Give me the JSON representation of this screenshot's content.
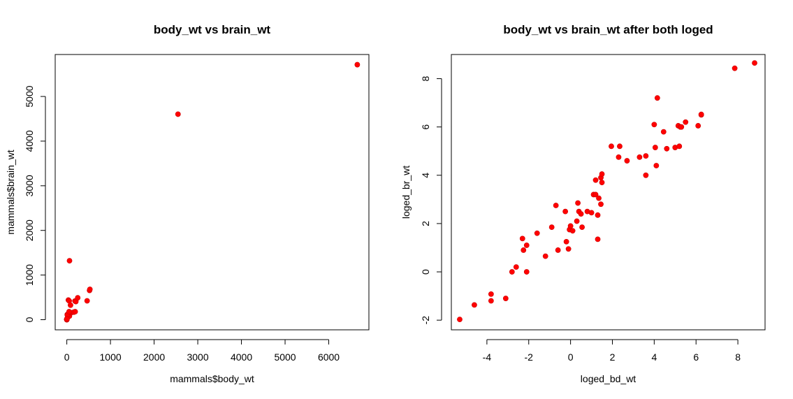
{
  "chart_data": [
    {
      "type": "scatter",
      "title": "body_wt vs brain_wt",
      "xlabel": "mammals$body_wt",
      "ylabel": "mammals$brain_wt",
      "xlim": [
        -266,
        6920
      ],
      "ylim": [
        -227,
        5940
      ],
      "x_ticks": [
        0,
        1000,
        2000,
        3000,
        4000,
        5000,
        6000
      ],
      "y_ticks": [
        0,
        1000,
        2000,
        3000,
        4000,
        5000
      ],
      "point_color": "#ff0000",
      "grid": false,
      "points": [
        {
          "x": 6654,
          "y": 5712
        },
        {
          "x": 2547,
          "y": 4603
        },
        {
          "x": 62,
          "y": 1320
        },
        {
          "x": 521,
          "y": 655
        },
        {
          "x": 529,
          "y": 680
        },
        {
          "x": 465,
          "y": 423
        },
        {
          "x": 187,
          "y": 419
        },
        {
          "x": 207,
          "y": 406
        },
        {
          "x": 250,
          "y": 490
        },
        {
          "x": 36,
          "y": 440
        },
        {
          "x": 55,
          "y": 420
        },
        {
          "x": 100,
          "y": 157
        },
        {
          "x": 60,
          "y": 81
        },
        {
          "x": 85,
          "y": 325
        },
        {
          "x": 10,
          "y": 115
        },
        {
          "x": 27,
          "y": 115
        },
        {
          "x": 14,
          "y": 98
        },
        {
          "x": 52,
          "y": 180
        },
        {
          "x": 160,
          "y": 169
        },
        {
          "x": 192,
          "y": 180
        },
        {
          "x": 3.5,
          "y": 10.8
        },
        {
          "x": 0.48,
          "y": 15.5
        },
        {
          "x": 1.35,
          "y": 8.1
        },
        {
          "x": 0.02,
          "y": 0.4
        },
        {
          "x": 0.12,
          "y": 3
        },
        {
          "x": 0.023,
          "y": 0.3
        },
        {
          "x": 0.785,
          "y": 3.5
        },
        {
          "x": 0.2,
          "y": 5
        },
        {
          "x": 1.41,
          "y": 17.5
        },
        {
          "x": 4.05,
          "y": 17
        }
      ]
    },
    {
      "type": "scatter",
      "title": "body_wt vs brain_wt after both loged",
      "xlabel": "loged_bd_wt",
      "ylabel": "loged_br_wt",
      "xlim": [
        -5.7,
        9.3
      ],
      "ylim": [
        -2.4,
        9.0
      ],
      "x_ticks": [
        -4,
        -2,
        0,
        2,
        4,
        6,
        8
      ],
      "y_ticks": [
        -2,
        0,
        2,
        4,
        6,
        8
      ],
      "point_color": "#ff0000",
      "grid": false,
      "points": [
        {
          "x": -5.3,
          "y": -1.97
        },
        {
          "x": -4.6,
          "y": -1.37
        },
        {
          "x": -3.8,
          "y": -0.92
        },
        {
          "x": -3.8,
          "y": -1.2
        },
        {
          "x": -3.1,
          "y": -1.1
        },
        {
          "x": -2.8,
          "y": 0.0
        },
        {
          "x": -2.6,
          "y": 0.2
        },
        {
          "x": -2.3,
          "y": 1.38
        },
        {
          "x": -2.25,
          "y": 0.9
        },
        {
          "x": -2.1,
          "y": 1.1
        },
        {
          "x": -2.1,
          "y": 0.0
        },
        {
          "x": -1.6,
          "y": 1.6
        },
        {
          "x": -1.2,
          "y": 0.65
        },
        {
          "x": -0.9,
          "y": 1.85
        },
        {
          "x": -0.7,
          "y": 2.75
        },
        {
          "x": -0.6,
          "y": 0.9
        },
        {
          "x": -0.25,
          "y": 2.5
        },
        {
          "x": -0.2,
          "y": 1.25
        },
        {
          "x": -0.1,
          "y": 0.95
        },
        {
          "x": -0.05,
          "y": 1.75
        },
        {
          "x": 0.0,
          "y": 1.9
        },
        {
          "x": 0.1,
          "y": 1.7
        },
        {
          "x": 0.3,
          "y": 2.1
        },
        {
          "x": 0.35,
          "y": 2.85
        },
        {
          "x": 0.4,
          "y": 2.5
        },
        {
          "x": 0.5,
          "y": 2.4
        },
        {
          "x": 0.55,
          "y": 1.85
        },
        {
          "x": 0.8,
          "y": 2.5
        },
        {
          "x": 1.0,
          "y": 2.45
        },
        {
          "x": 1.1,
          "y": 3.2
        },
        {
          "x": 1.2,
          "y": 3.2
        },
        {
          "x": 1.2,
          "y": 3.8
        },
        {
          "x": 1.3,
          "y": 2.35
        },
        {
          "x": 1.3,
          "y": 1.35
        },
        {
          "x": 1.35,
          "y": 3.05
        },
        {
          "x": 1.45,
          "y": 2.8
        },
        {
          "x": 1.45,
          "y": 3.9
        },
        {
          "x": 1.5,
          "y": 4.05
        },
        {
          "x": 1.5,
          "y": 3.7
        },
        {
          "x": 1.95,
          "y": 5.2
        },
        {
          "x": 2.3,
          "y": 4.75
        },
        {
          "x": 2.35,
          "y": 5.2
        },
        {
          "x": 2.7,
          "y": 4.6
        },
        {
          "x": 3.3,
          "y": 4.75
        },
        {
          "x": 3.6,
          "y": 4.8
        },
        {
          "x": 3.6,
          "y": 4.0
        },
        {
          "x": 4.0,
          "y": 6.1
        },
        {
          "x": 4.05,
          "y": 5.15
        },
        {
          "x": 4.1,
          "y": 4.4
        },
        {
          "x": 4.15,
          "y": 7.2
        },
        {
          "x": 4.45,
          "y": 5.8
        },
        {
          "x": 4.6,
          "y": 5.1
        },
        {
          "x": 5.0,
          "y": 5.15
        },
        {
          "x": 5.15,
          "y": 6.05
        },
        {
          "x": 5.2,
          "y": 5.2
        },
        {
          "x": 5.25,
          "y": 6.0
        },
        {
          "x": 5.3,
          "y": 6.0
        },
        {
          "x": 5.5,
          "y": 6.2
        },
        {
          "x": 6.1,
          "y": 6.05
        },
        {
          "x": 6.25,
          "y": 6.5
        },
        {
          "x": 6.25,
          "y": 6.52
        },
        {
          "x": 7.85,
          "y": 8.43
        },
        {
          "x": 8.8,
          "y": 8.65
        }
      ]
    }
  ]
}
